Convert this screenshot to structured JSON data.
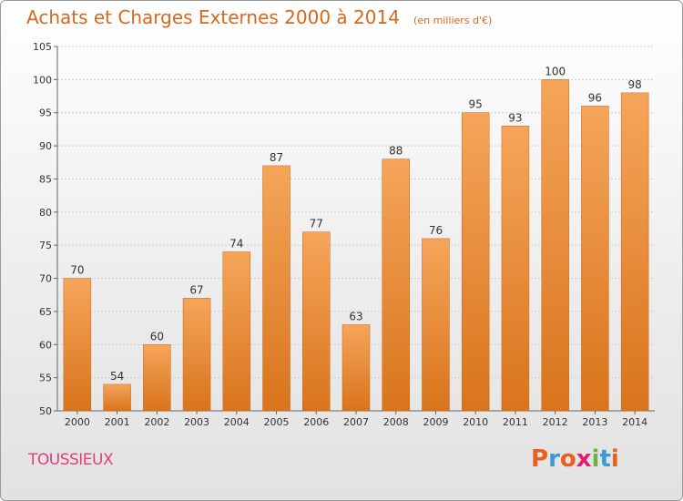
{
  "header": {
    "title": "Achats et Charges Externes 2000 à 2014",
    "subtitle": "(en milliers d'€)"
  },
  "footer": {
    "commune": "TOUSSIEUX",
    "logo_letters": [
      "P",
      "r",
      "o",
      "x",
      "i",
      "t",
      "i"
    ],
    "logo_colors": [
      "#e8601a",
      "#3c9ad6",
      "#e8601a",
      "#e41c6c",
      "#6db33f",
      "#3c9ad6",
      "#e8601a"
    ]
  },
  "colors": {
    "bar_top": "#f5a55a",
    "bar_bottom": "#d9741c",
    "bar_edge": "#c8651a",
    "grid": "#cccccc",
    "axis_text": "#333333",
    "accent": "#d2691e"
  },
  "chart_data": {
    "type": "bar",
    "title": "Achats et Charges Externes 2000 à 2014",
    "subtitle": "(en milliers d'€)",
    "xlabel": "",
    "ylabel": "",
    "categories": [
      "2000",
      "2001",
      "2002",
      "2003",
      "2004",
      "2005",
      "2006",
      "2007",
      "2008",
      "2009",
      "2010",
      "2011",
      "2012",
      "2013",
      "2014"
    ],
    "values": [
      70,
      54,
      60,
      67,
      74,
      87,
      77,
      63,
      88,
      76,
      95,
      93,
      100,
      96,
      98
    ],
    "ylim": [
      50,
      105
    ],
    "yticks": [
      50,
      55,
      60,
      65,
      70,
      75,
      80,
      85,
      90,
      95,
      100,
      105
    ],
    "grid": true,
    "data_labels": true
  }
}
